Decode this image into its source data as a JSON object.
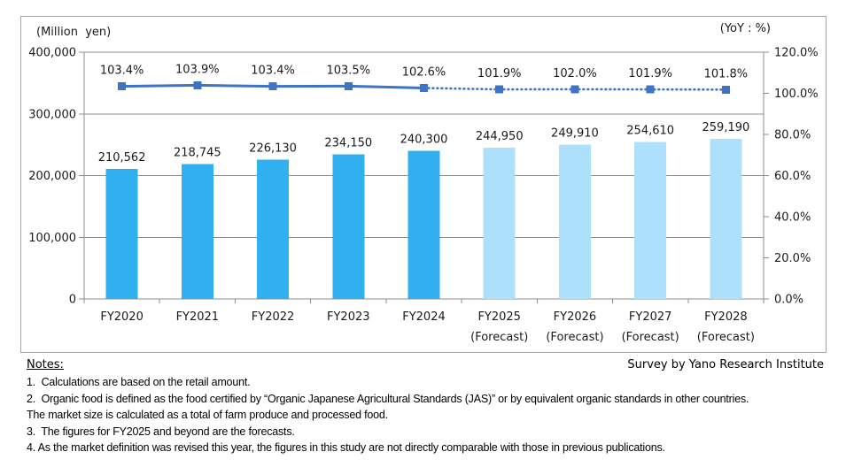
{
  "chart_data": {
    "type": "bar+line combo",
    "categories": [
      {
        "label": "FY2020",
        "sub": ""
      },
      {
        "label": "FY2021",
        "sub": ""
      },
      {
        "label": "FY2022",
        "sub": ""
      },
      {
        "label": "FY2023",
        "sub": ""
      },
      {
        "label": "FY2024",
        "sub": ""
      },
      {
        "label": "FY2025",
        "sub": "(Forecast)"
      },
      {
        "label": "FY2026",
        "sub": "(Forecast)"
      },
      {
        "label": "FY2027",
        "sub": "(Forecast)"
      },
      {
        "label": "FY2028",
        "sub": "(Forecast)"
      }
    ],
    "series": [
      {
        "name": "Market size",
        "type": "bar",
        "axis": "left",
        "unit": "Million yen",
        "values": [
          210562,
          218745,
          226130,
          234150,
          240300,
          244950,
          249910,
          254610,
          259190
        ],
        "labels": [
          "210,562",
          "218,745",
          "226,130",
          "234,150",
          "240,300",
          "244,950",
          "249,910",
          "254,610",
          "259,190"
        ],
        "forecast_start_index": 5,
        "color": "#30b0ee",
        "forecast_color": "#ade0fa"
      },
      {
        "name": "YoY",
        "type": "line",
        "axis": "right",
        "unit": "%",
        "values": [
          103.4,
          103.9,
          103.4,
          103.5,
          102.6,
          101.9,
          102.0,
          101.9,
          101.8
        ],
        "labels": [
          "103.4%",
          "103.9%",
          "103.4%",
          "103.5%",
          "102.6%",
          "101.9%",
          "102.0%",
          "101.9%",
          "101.8%"
        ],
        "solid_through_index": 4,
        "color": "#3e73c5"
      }
    ],
    "left_axis": {
      "title": "(Million  yen)",
      "min": 0,
      "max": 400000,
      "ticks": [
        {
          "v": 400000,
          "label": "400,000"
        },
        {
          "v": 300000,
          "label": "300,000"
        },
        {
          "v": 200000,
          "label": "200,000"
        },
        {
          "v": 100000,
          "label": "100,000"
        },
        {
          "v": 0,
          "label": "0"
        }
      ]
    },
    "right_axis": {
      "title": "(YoY : %)",
      "min": 0,
      "max": 120,
      "ticks": [
        {
          "v": 120,
          "label": "120.0%"
        },
        {
          "v": 100,
          "label": "100.0%"
        },
        {
          "v": 80,
          "label": "80.0%"
        },
        {
          "v": 60,
          "label": "60.0%"
        },
        {
          "v": 40,
          "label": "40.0%"
        },
        {
          "v": 20,
          "label": "20.0%"
        },
        {
          "v": 0,
          "label": "0.0%"
        }
      ]
    },
    "grid": true,
    "legend": "none"
  },
  "notes": {
    "title": "Notes:",
    "lines": [
      "1.  Calculations are based on the retail amount.",
      "2.  Organic food is defined as the food certified by “Organic Japanese Agricultural Standards (JAS)” or by equivalent organic standards in other countries.",
      "The market size is calculated as a total of farm produce and processed food.",
      "3.  The figures for FY2025 and beyond are the forecasts.",
      "4. As the market definition was revised this year, the figures in this study are not directly comparable with those in previous publications."
    ]
  },
  "credit": "Survey by Yano Research Institute"
}
